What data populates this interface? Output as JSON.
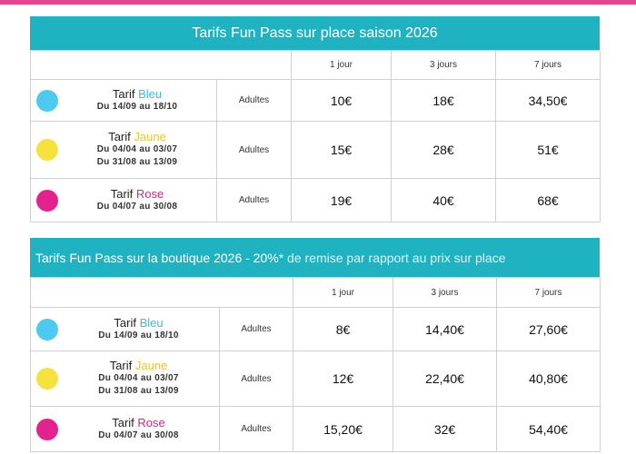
{
  "tables": [
    {
      "title": "Tarifs Fun Pass sur place saison 2026",
      "columns": [
        "1 jour",
        "3 jours",
        "7 jours"
      ],
      "rows": [
        {
          "tarif": "Tarif",
          "color_name": "Bleu",
          "color": "#4ccaf0",
          "text_color": "#35bde6",
          "dates": [
            "Du 14/09 au 18/10"
          ],
          "audience": "Adultes",
          "prices": [
            "10€",
            "18€",
            "34,50€"
          ]
        },
        {
          "tarif": "Tarif",
          "color_name": "Jaune",
          "color": "#f6e23c",
          "text_color": "#e7c72a",
          "dates": [
            "Du 04/04 au 03/07",
            "Du 31/08 au 13/09"
          ],
          "audience": "Adultes",
          "prices": [
            "15€",
            "28€",
            "51€"
          ]
        },
        {
          "tarif": "Tarif",
          "color_name": "Rose",
          "color": "#e5208f",
          "text_color": "#d81f86",
          "dates": [
            "Du 04/07 au 30/08"
          ],
          "audience": "Adultes",
          "prices": [
            "19€",
            "40€",
            "68€"
          ]
        }
      ]
    },
    {
      "title": "Tarifs Fun Pass sur la boutique 2026 - 20%*",
      "title_suffix": " de remise par rapport au prix sur place",
      "columns": [
        "1 jour",
        "3 jours",
        "7 jours"
      ],
      "rows": [
        {
          "tarif": "Tarif",
          "color_name": "Bleu",
          "color": "#4ccaf0",
          "text_color": "#35bde6",
          "dates": [
            "Du 14/09 au 18/10"
          ],
          "audience": "Adultes",
          "prices": [
            "8€",
            "14,40€",
            "27,60€"
          ]
        },
        {
          "tarif": "Tarif",
          "color_name": "Jaune",
          "color": "#f6e23c",
          "text_color": "#e7c72a",
          "dates": [
            "Du 04/04 au 03/07",
            "Du 31/08 au 13/09"
          ],
          "audience": "Adultes",
          "prices": [
            "12€",
            "22,40€",
            "40,80€"
          ]
        },
        {
          "tarif": "Tarif",
          "color_name": "Rose",
          "color": "#e5208f",
          "text_color": "#d81f86",
          "dates": [
            "Du 04/07 au 30/08"
          ],
          "audience": "Adultes",
          "prices": [
            "15,20€",
            "32€",
            "54,40€"
          ]
        }
      ]
    }
  ]
}
